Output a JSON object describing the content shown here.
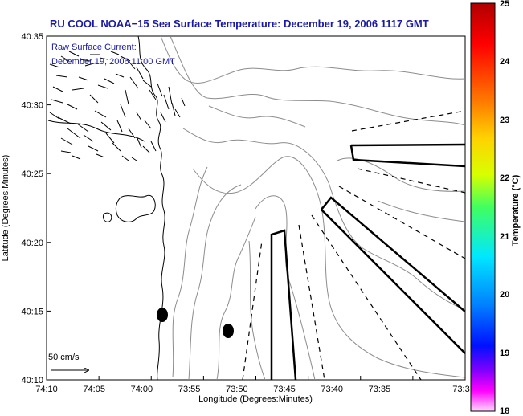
{
  "title": "RU COOL  NOAA−15  Sea Surface Temperature:  December 19, 2006 1117 GMT",
  "current_note": {
    "line1": "Raw Surface Current:",
    "line2": "December 19, 2006 11:00 GMT"
  },
  "scale_label": "50 cm/s",
  "x_axis": {
    "label": "Longitude (Degrees:Minutes)",
    "ticks": [
      "74:10",
      "74:05",
      "74:00",
      "73:55",
      "73:50",
      "73:45",
      "73:40",
      "73:35",
      "73:3"
    ]
  },
  "y_axis": {
    "label": "Latitude (Degrees:Minutes)",
    "ticks": [
      "40:35",
      "40:30",
      "40:25",
      "40:20",
      "40:15",
      "40:10"
    ]
  },
  "colorbar": {
    "label": "Temperature (°C)",
    "ticks": [
      "25",
      "24",
      "23",
      "22",
      "21",
      "20",
      "19",
      "18"
    ],
    "colors": [
      "#c00000",
      "#ff0000",
      "#ff8000",
      "#ffff00",
      "#80ff00",
      "#00ff80",
      "#00ffff",
      "#0080ff",
      "#0000ff",
      "#8000ff",
      "#ff00ff",
      "#ffffff"
    ]
  }
}
